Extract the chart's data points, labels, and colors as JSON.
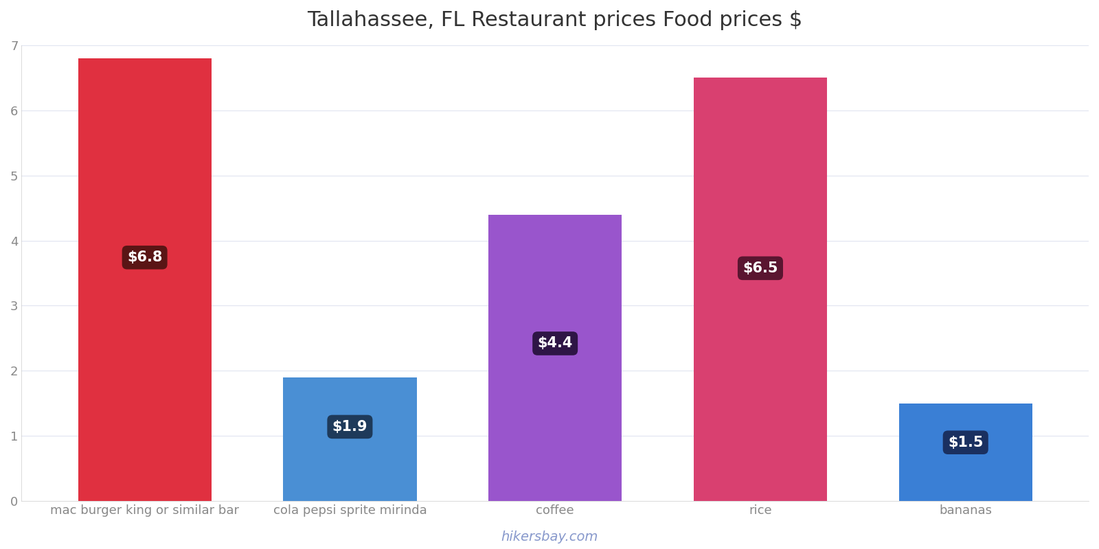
{
  "title": "Tallahassee, FL Restaurant prices Food prices $",
  "categories": [
    "mac burger king or similar bar",
    "cola pepsi sprite mirinda",
    "coffee",
    "rice",
    "bananas"
  ],
  "values": [
    6.8,
    1.9,
    4.4,
    6.5,
    1.5
  ],
  "bar_colors": [
    "#e03040",
    "#4a8fd4",
    "#9955cc",
    "#d94070",
    "#3a7fd5"
  ],
  "label_bg_colors": [
    "#5a1515",
    "#1e3a5a",
    "#2e1545",
    "#5a1530",
    "#1a3060"
  ],
  "labels": [
    "$6.8",
    "$1.9",
    "$4.4",
    "$6.5",
    "$1.5"
  ],
  "ylim": [
    0,
    7
  ],
  "yticks": [
    0,
    1,
    2,
    3,
    4,
    5,
    6,
    7
  ],
  "watermark": "hikersbay.com",
  "title_fontsize": 22,
  "tick_fontsize": 13,
  "label_fontsize": 15,
  "watermark_fontsize": 14,
  "background_color": "#ffffff",
  "grid_color": "#e0e4f0"
}
